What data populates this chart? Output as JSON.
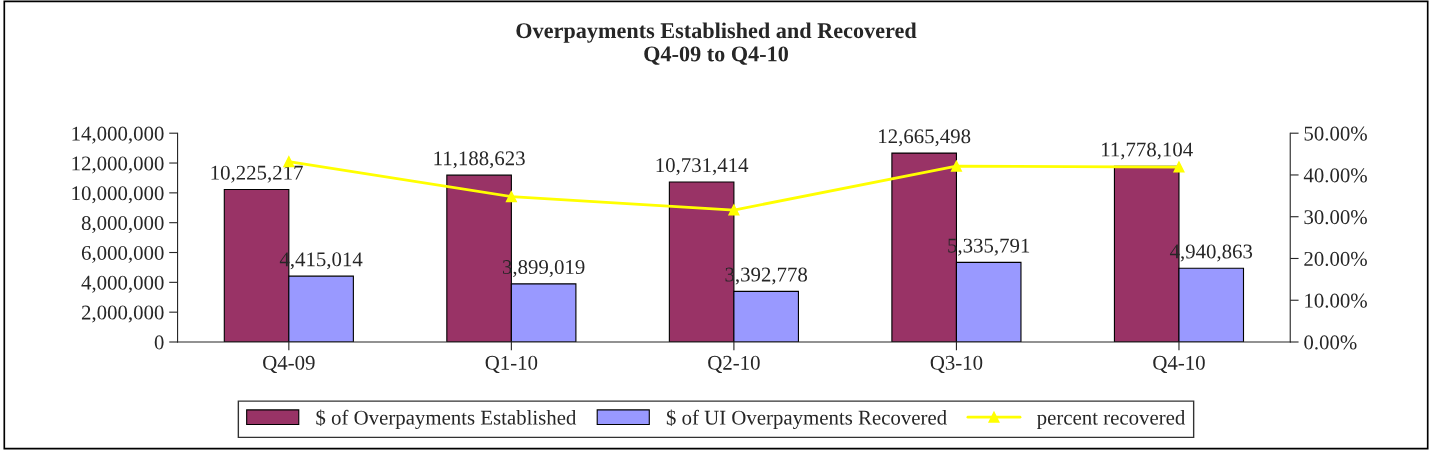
{
  "chart_data": {
    "type": "bar",
    "title": "Overpayments Established and Recovered\nQ4-09 to Q4-10",
    "categories": [
      "Q4-09",
      "Q1-10",
      "Q2-10",
      "Q3-10",
      "Q4-10"
    ],
    "series": [
      {
        "name": "$ of Overpayments Established",
        "color": "#993366",
        "values": [
          10225217,
          11188623,
          10731414,
          12665498,
          11778104
        ],
        "value_labels": [
          "10,225,217",
          "11,188,623",
          "10,731,414",
          "12,665,498",
          "11,778,104"
        ]
      },
      {
        "name": "$ of UI Overpayments Recovered",
        "color": "#9999ff",
        "values": [
          4415014,
          3899019,
          3392778,
          5335791,
          4940863
        ],
        "value_labels": [
          "4,415,014",
          "3,899,019",
          "3,392,778",
          "5,335,791",
          "4,940,863"
        ]
      },
      {
        "name": "percent recovered",
        "type": "line",
        "axis": "y2",
        "color": "#ffff00",
        "marker": "triangle",
        "values": [
          43.2,
          34.8,
          31.6,
          42.1,
          41.9
        ]
      }
    ],
    "ylim": [
      0,
      14000000
    ],
    "yticks": [
      {
        "value": 0,
        "label": "0"
      },
      {
        "value": 2000000,
        "label": "2,000,000"
      },
      {
        "value": 4000000,
        "label": "4,000,000"
      },
      {
        "value": 6000000,
        "label": "6,000,000"
      },
      {
        "value": 8000000,
        "label": "8,000,000"
      },
      {
        "value": 10000000,
        "label": "10,000,000"
      },
      {
        "value": 12000000,
        "label": "12,000,000"
      },
      {
        "value": 14000000,
        "label": "14,000,000"
      }
    ],
    "y2lim": [
      0,
      50
    ],
    "y2ticks": [
      {
        "value": 0,
        "label": "0.00%"
      },
      {
        "value": 10,
        "label": "10.00%"
      },
      {
        "value": 20,
        "label": "20.00%"
      },
      {
        "value": 30,
        "label": "30.00%"
      },
      {
        "value": 40,
        "label": "40.00%"
      },
      {
        "value": 50,
        "label": "50.00%"
      }
    ],
    "grid": false,
    "legend": "bottom"
  }
}
